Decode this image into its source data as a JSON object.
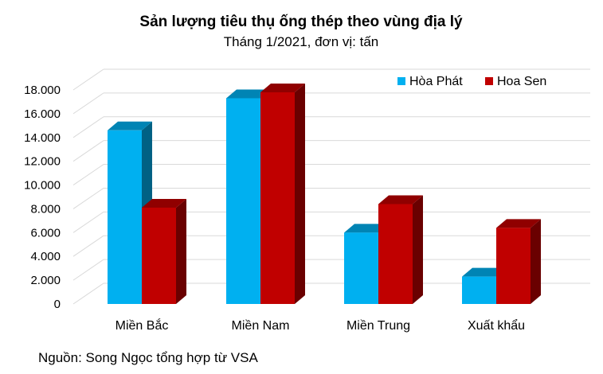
{
  "chart_data": {
    "type": "bar",
    "title": "Sản lượng tiêu thụ ống thép theo vùng địa lý",
    "subtitle": "Tháng 1/2021, đơn vị: tấn",
    "categories": [
      "Miền Bắc",
      "Miền Nam",
      "Miền Trung",
      "Xuất khẩu"
    ],
    "series": [
      {
        "name": "Hòa Phát",
        "values": [
          14600,
          17300,
          6000,
          2300
        ],
        "color": "#00B0F0"
      },
      {
        "name": "Hoa Sen",
        "values": [
          8100,
          17800,
          8400,
          6400
        ],
        "color": "#C00000"
      }
    ],
    "ylim": [
      0,
      18000
    ],
    "yticks": [
      "0",
      "2.000",
      "4.000",
      "6.000",
      "8.000",
      "10.000",
      "12.000",
      "14.000",
      "16.000",
      "18.000"
    ],
    "grid": true,
    "legend_position": "top-right",
    "style": "3d-clustered-column"
  },
  "source": "Nguồn: Song Ngọc tổng hợp từ VSA"
}
